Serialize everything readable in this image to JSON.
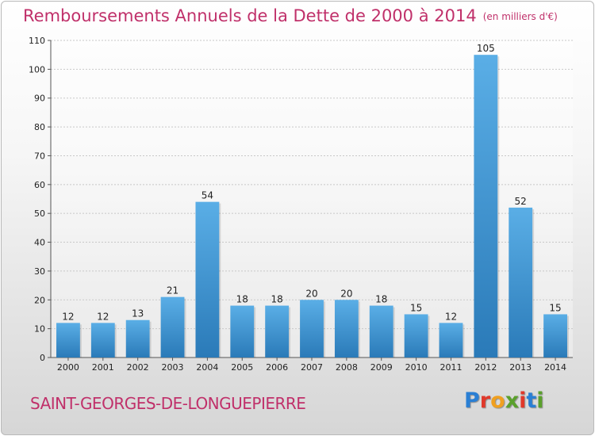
{
  "header": {
    "title": "Remboursements Annuels de la Dette de 2000 à 2014",
    "subtitle": "(en milliers d'€)"
  },
  "commune": "SAINT-GEORGES-DE-LONGUEPIERRE",
  "logo": {
    "text": "Proxiti",
    "letter_colors": [
      "#2a7fd4",
      "#e0392b",
      "#f0a020",
      "#5aa02c",
      "#e0392b",
      "#2a7fd4",
      "#5aa02c"
    ]
  },
  "colors": {
    "bar_top": "#5aaee6",
    "bar_bottom": "#2a7ab8",
    "grid": "#c8c8c8",
    "title": "#c0306a"
  },
  "chart_data": {
    "type": "bar",
    "categories": [
      "2000",
      "2001",
      "2002",
      "2003",
      "2004",
      "2005",
      "2006",
      "2007",
      "2008",
      "2009",
      "2010",
      "2011",
      "2012",
      "2013",
      "2014"
    ],
    "values": [
      12,
      12,
      13,
      21,
      54,
      18,
      18,
      20,
      20,
      18,
      15,
      12,
      105,
      52,
      15
    ],
    "ylim": [
      0,
      110
    ],
    "yticks": [
      0,
      10,
      20,
      30,
      40,
      50,
      60,
      70,
      80,
      90,
      100,
      110
    ],
    "grid": true
  }
}
